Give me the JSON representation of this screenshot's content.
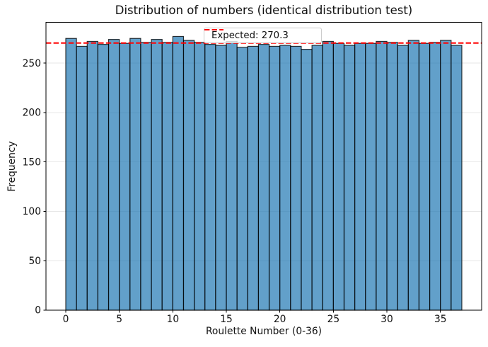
{
  "title": "Distribution of numbers (identical distribution test)",
  "legend": {
    "label": "Expected: 270.3"
  },
  "chart_data": {
    "type": "bar",
    "title": "Distribution of numbers (identical distribution test)",
    "xlabel": "Roulette Number (0-36)",
    "ylabel": "Frequency",
    "categories": [
      0,
      1,
      2,
      3,
      4,
      5,
      6,
      7,
      8,
      9,
      10,
      11,
      12,
      13,
      14,
      15,
      16,
      17,
      18,
      19,
      20,
      21,
      22,
      23,
      24,
      25,
      26,
      27,
      28,
      29,
      30,
      31,
      32,
      33,
      34,
      35,
      36
    ],
    "values": [
      275,
      267,
      272,
      269,
      274,
      270,
      275,
      271,
      274,
      271,
      277,
      273,
      271,
      269,
      268,
      272,
      266,
      267,
      269,
      267,
      268,
      267,
      264,
      268,
      272,
      270,
      268,
      270,
      270,
      272,
      271,
      268,
      273,
      270,
      271,
      273,
      268
    ],
    "expected_value": 270.3,
    "legend_label": "Expected: 270.3",
    "xticks": [
      0,
      5,
      10,
      15,
      20,
      25,
      30,
      35
    ],
    "yticks": [
      0,
      50,
      100,
      150,
      200,
      250
    ],
    "xlim": [
      -1.85,
      38.85
    ],
    "ylim": [
      0,
      291.3
    ],
    "grid": true,
    "legend_position": "upper center",
    "colors": {
      "bar_fill": "#1f77b4",
      "bar_edge": "#000000",
      "expected_line": "#ff0000",
      "grid_line": "#e7e7e7",
      "spine": "#000000"
    },
    "bar_alpha": 0.7
  }
}
